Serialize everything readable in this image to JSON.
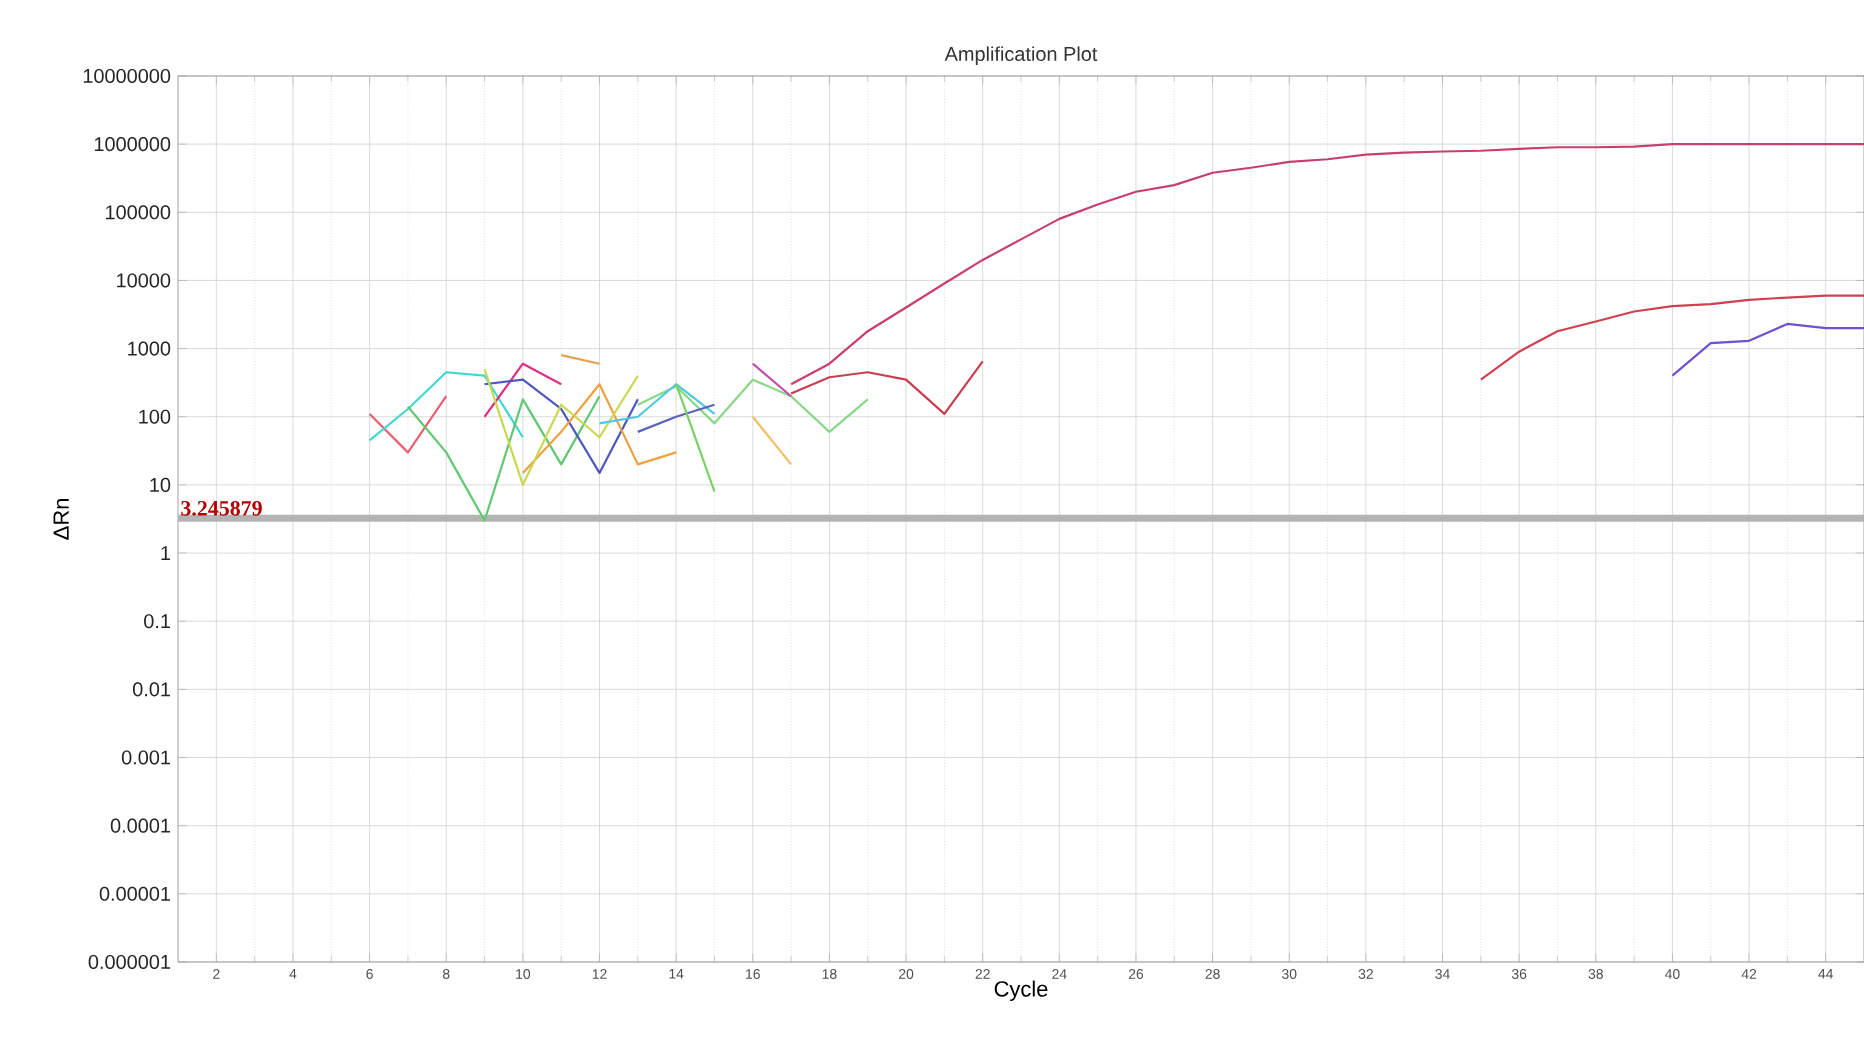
{
  "chart_data": {
    "type": "line",
    "title": "Amplification Plot",
    "xlabel": "Cycle",
    "ylabel": "ΔRn",
    "log": "y",
    "grid": true,
    "marker": "none",
    "line_style": "solid",
    "xlim": [
      1,
      45
    ],
    "xticks": [
      2,
      4,
      6,
      8,
      10,
      12,
      14,
      16,
      18,
      20,
      22,
      24,
      26,
      28,
      30,
      32,
      34,
      36,
      38,
      40,
      42,
      44
    ],
    "ylim": [
      1e-06,
      10000000
    ],
    "yticks": [
      {
        "value": 1e-06,
        "label": "0.000001"
      },
      {
        "value": 1e-05,
        "label": "0.00001"
      },
      {
        "value": 0.0001,
        "label": "0.0001"
      },
      {
        "value": 0.001,
        "label": "0.001"
      },
      {
        "value": 0.01,
        "label": "0.01"
      },
      {
        "value": 0.1,
        "label": "0.1"
      },
      {
        "value": 1,
        "label": "1"
      },
      {
        "value": 10,
        "label": "10"
      },
      {
        "value": 100,
        "label": "100"
      },
      {
        "value": 1000,
        "label": "1000"
      },
      {
        "value": 10000,
        "label": "10000"
      },
      {
        "value": 100000,
        "label": "100000"
      },
      {
        "value": 1000000,
        "label": "1000000"
      },
      {
        "value": 10000000,
        "label": "10000000"
      }
    ],
    "ref_lines": [
      {
        "axis": "y",
        "value": 3.245879,
        "label": "3.245879",
        "color": "#b4b4b4"
      }
    ],
    "series": [
      {
        "color": "#c8406a",
        "x": [
          17,
          18,
          19,
          20,
          21,
          22,
          23,
          24,
          25,
          26,
          27,
          28,
          29,
          30,
          31,
          32,
          33,
          34,
          35,
          36,
          37,
          38,
          39,
          40,
          41,
          42,
          43,
          44,
          45
        ],
        "values": [
          300,
          600,
          1800,
          4000,
          9000,
          20000,
          40000,
          80000,
          130000,
          200000,
          250000,
          380000,
          450000,
          550000,
          600000,
          700000,
          750000,
          780000,
          800000,
          850000,
          900000,
          900000,
          920000,
          1000000,
          1000000,
          1000000,
          1000000,
          1000000,
          1000000
        ]
      },
      {
        "color": "#c84050",
        "x": [
          17,
          18,
          19,
          20,
          21,
          22
        ],
        "values": [
          220,
          380,
          450,
          350,
          110,
          650
        ]
      },
      {
        "color": "#d04050",
        "x": [
          35,
          36,
          37,
          38,
          39,
          40,
          41,
          42,
          43,
          44,
          45
        ],
        "values": [
          350,
          900,
          1800,
          2500,
          3500,
          4200,
          4500,
          5200,
          5600,
          6000,
          6000
        ]
      },
      {
        "color": "#7050d0",
        "x": [
          40,
          41,
          42,
          43,
          44,
          45
        ],
        "values": [
          400,
          1200,
          1300,
          2300,
          2000,
          2000
        ]
      },
      {
        "color": "#e86070",
        "x": [
          6,
          7,
          8
        ],
        "values": [
          110,
          30,
          200
        ]
      },
      {
        "color": "#40d8d0",
        "x": [
          6,
          7,
          8,
          9,
          10
        ],
        "values": [
          45,
          130,
          450,
          400,
          50
        ]
      },
      {
        "color": "#60c870",
        "x": [
          7,
          8,
          9,
          10,
          11,
          12
        ],
        "values": [
          140,
          30,
          3,
          180,
          20,
          200
        ]
      },
      {
        "color": "#e03080",
        "x": [
          9,
          10,
          11
        ],
        "values": [
          100,
          600,
          300
        ]
      },
      {
        "color": "#4a58c0",
        "x": [
          9,
          10,
          11,
          12,
          13
        ],
        "values": [
          300,
          350,
          130,
          15,
          180
        ]
      },
      {
        "color": "#f0a040",
        "x": [
          10,
          11,
          12,
          13,
          14
        ],
        "values": [
          15,
          60,
          300,
          20,
          30
        ]
      },
      {
        "color": "#c8d850",
        "x": [
          9,
          10,
          11,
          12,
          13
        ],
        "values": [
          500,
          10,
          150,
          50,
          400
        ]
      },
      {
        "color": "#88d888",
        "x": [
          13,
          14,
          15,
          16,
          17,
          18,
          19
        ],
        "values": [
          150,
          280,
          80,
          350,
          200,
          60,
          180
        ]
      },
      {
        "color": "#50c8e0",
        "x": [
          12,
          13,
          14,
          15
        ],
        "values": [
          80,
          100,
          300,
          110
        ]
      },
      {
        "color": "#5a64b8",
        "x": [
          13,
          14,
          15
        ],
        "values": [
          60,
          100,
          150
        ]
      },
      {
        "color": "#c050b0",
        "x": [
          16,
          17
        ],
        "values": [
          600,
          200
        ]
      },
      {
        "color": "#e8a050",
        "x": [
          11,
          12
        ],
        "values": [
          800,
          600
        ]
      },
      {
        "color": "#f0c060",
        "x": [
          16,
          17
        ],
        "values": [
          100,
          20
        ]
      },
      {
        "color": "#78d060",
        "x": [
          14,
          15
        ],
        "values": [
          300,
          8
        ]
      }
    ]
  }
}
